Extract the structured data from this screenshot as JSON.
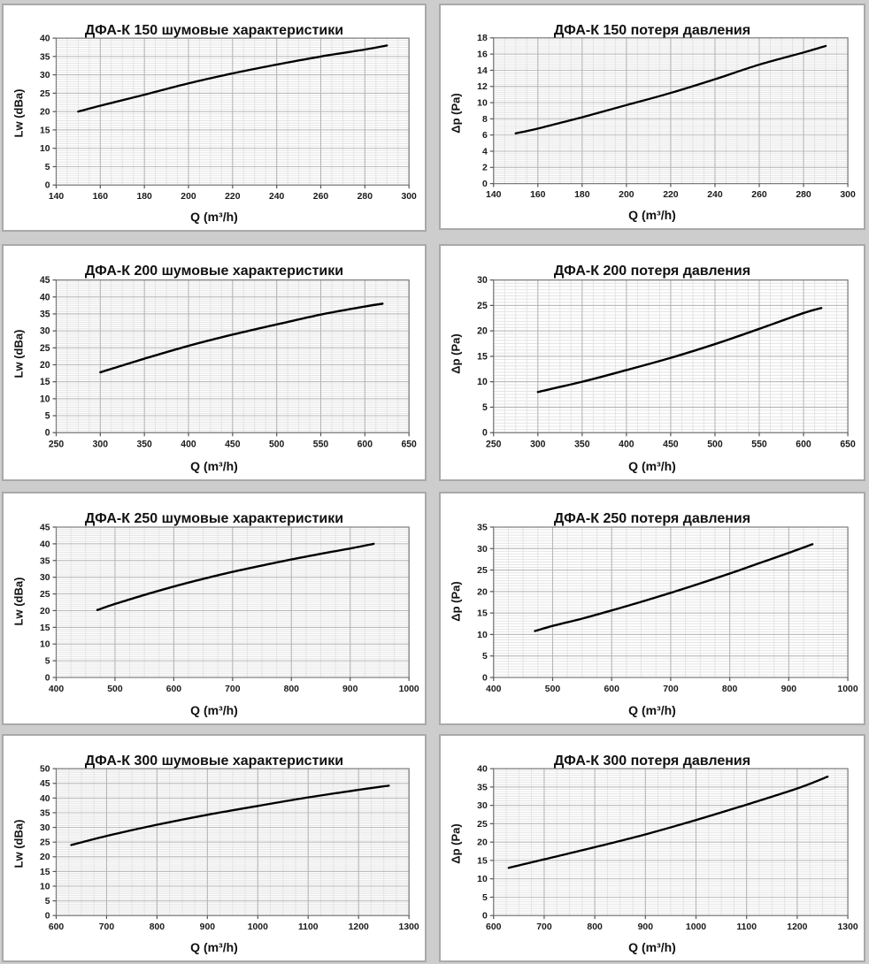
{
  "page": {
    "background": "#cdcdcd",
    "panel_background": "#ffffff",
    "panel_border": "#a9a9a9",
    "grid_major_color": "#b4b4b4",
    "grid_minor_color": "#e4e4e4",
    "curve_color": "#000000"
  },
  "chart_data": [
    {
      "type": "line",
      "title": "ДФА-К 150 шумовые характеристики",
      "xlabel": "Q (m³/h)",
      "ylabel": "Lw (dBa)",
      "xlim": [
        140,
        300
      ],
      "x_major": 20,
      "x_minor": 5,
      "ylim": [
        0,
        40
      ],
      "y_major": 5,
      "y_minor": 0.625,
      "grid": true,
      "legend": "none",
      "line_color": "#000000",
      "points": [
        [
          150,
          20
        ],
        [
          160,
          21.6
        ],
        [
          180,
          24.6
        ],
        [
          200,
          27.7
        ],
        [
          220,
          30.4
        ],
        [
          240,
          32.8
        ],
        [
          260,
          35
        ],
        [
          280,
          36.9
        ],
        [
          290,
          38
        ]
      ]
    },
    {
      "type": "line",
      "title": "ДФА-К 150 потеря давления",
      "xlabel": "Q (m³/h)",
      "ylabel": "Δp (Pa)",
      "xlim": [
        140,
        300
      ],
      "x_major": 20,
      "x_minor": 5,
      "ylim": [
        0,
        18
      ],
      "y_major": 2,
      "y_minor": 0.25,
      "grid": true,
      "legend": "none",
      "line_color": "#000000",
      "points": [
        [
          150,
          6.2
        ],
        [
          160,
          6.8
        ],
        [
          180,
          8.2
        ],
        [
          200,
          9.7
        ],
        [
          220,
          11.2
        ],
        [
          240,
          12.9
        ],
        [
          260,
          14.7
        ],
        [
          280,
          16.2
        ],
        [
          290,
          17
        ]
      ]
    },
    {
      "type": "line",
      "title": "ДФА-К 200 шумовые характеристики",
      "xlabel": "Q (m³/h)",
      "ylabel": "Lw (dBa)",
      "xlim": [
        250,
        650
      ],
      "x_major": 50,
      "x_minor": 12.5,
      "ylim": [
        0,
        45
      ],
      "y_major": 5,
      "y_minor": 0.625,
      "grid": true,
      "legend": "none",
      "line_color": "#000000",
      "points": [
        [
          300,
          17.8
        ],
        [
          350,
          21.8
        ],
        [
          400,
          25.6
        ],
        [
          450,
          28.9
        ],
        [
          500,
          31.9
        ],
        [
          550,
          34.8
        ],
        [
          600,
          37.2
        ],
        [
          620,
          38
        ]
      ]
    },
    {
      "type": "line",
      "title": "ДФА-К 200 потеря давления",
      "xlabel": "Q (m³/h)",
      "ylabel": "Δp (Pa)",
      "xlim": [
        250,
        650
      ],
      "x_major": 50,
      "x_minor": 12.5,
      "ylim": [
        0,
        30
      ],
      "y_major": 5,
      "y_minor": 0.625,
      "grid": true,
      "legend": "none",
      "line_color": "#000000",
      "points": [
        [
          300,
          8
        ],
        [
          350,
          10
        ],
        [
          400,
          12.3
        ],
        [
          450,
          14.7
        ],
        [
          500,
          17.4
        ],
        [
          550,
          20.4
        ],
        [
          600,
          23.5
        ],
        [
          620,
          24.5
        ]
      ]
    },
    {
      "type": "line",
      "title": "ДФА-К 250 шумовые характеристики",
      "xlabel": "Q (m³/h)",
      "ylabel": "Lw (dBa)",
      "xlim": [
        400,
        1000
      ],
      "x_major": 100,
      "x_minor": 25,
      "ylim": [
        0,
        45
      ],
      "y_major": 5,
      "y_minor": 0.625,
      "grid": true,
      "legend": "none",
      "line_color": "#000000",
      "points": [
        [
          470,
          20.2
        ],
        [
          500,
          22
        ],
        [
          550,
          24.7
        ],
        [
          600,
          27.2
        ],
        [
          650,
          29.5
        ],
        [
          700,
          31.6
        ],
        [
          750,
          33.5
        ],
        [
          800,
          35.3
        ],
        [
          850,
          37
        ],
        [
          900,
          38.6
        ],
        [
          940,
          40
        ]
      ]
    },
    {
      "type": "line",
      "title": "ДФА-К 250 потеря давления",
      "xlabel": "Q (m³/h)",
      "ylabel": "Δp (Pa)",
      "xlim": [
        400,
        1000
      ],
      "x_major": 100,
      "x_minor": 25,
      "ylim": [
        0,
        35
      ],
      "y_major": 5,
      "y_minor": 0.625,
      "grid": true,
      "legend": "none",
      "line_color": "#000000",
      "points": [
        [
          470,
          10.8
        ],
        [
          500,
          12
        ],
        [
          550,
          13.7
        ],
        [
          600,
          15.6
        ],
        [
          650,
          17.6
        ],
        [
          700,
          19.7
        ],
        [
          750,
          21.9
        ],
        [
          800,
          24.2
        ],
        [
          850,
          26.6
        ],
        [
          900,
          29
        ],
        [
          940,
          31
        ]
      ]
    },
    {
      "type": "line",
      "title": "ДФА-К 300 шумовые характеристики",
      "xlabel": "Q (m³/h)",
      "ylabel": "Lw (dBa)",
      "xlim": [
        600,
        1300
      ],
      "x_major": 100,
      "x_minor": 25,
      "ylim": [
        0,
        50
      ],
      "y_major": 5,
      "y_minor": 0.625,
      "grid": true,
      "legend": "none",
      "line_color": "#000000",
      "points": [
        [
          630,
          24
        ],
        [
          700,
          27.1
        ],
        [
          800,
          30.9
        ],
        [
          900,
          34.3
        ],
        [
          1000,
          37.3
        ],
        [
          1100,
          40.2
        ],
        [
          1200,
          42.8
        ],
        [
          1260,
          44.2
        ]
      ]
    },
    {
      "type": "line",
      "title": "ДФА-К 300 потеря давления",
      "xlabel": "Q (m³/h)",
      "ylabel": "Δp (Pa)",
      "xlim": [
        600,
        1300
      ],
      "x_major": 100,
      "x_minor": 25,
      "ylim": [
        0,
        40
      ],
      "y_major": 5,
      "y_minor": 0.625,
      "grid": true,
      "legend": "none",
      "line_color": "#000000",
      "points": [
        [
          630,
          13
        ],
        [
          700,
          15.3
        ],
        [
          800,
          18.6
        ],
        [
          900,
          22.1
        ],
        [
          1000,
          26
        ],
        [
          1100,
          30.2
        ],
        [
          1200,
          34.6
        ],
        [
          1260,
          37.8
        ]
      ]
    }
  ]
}
